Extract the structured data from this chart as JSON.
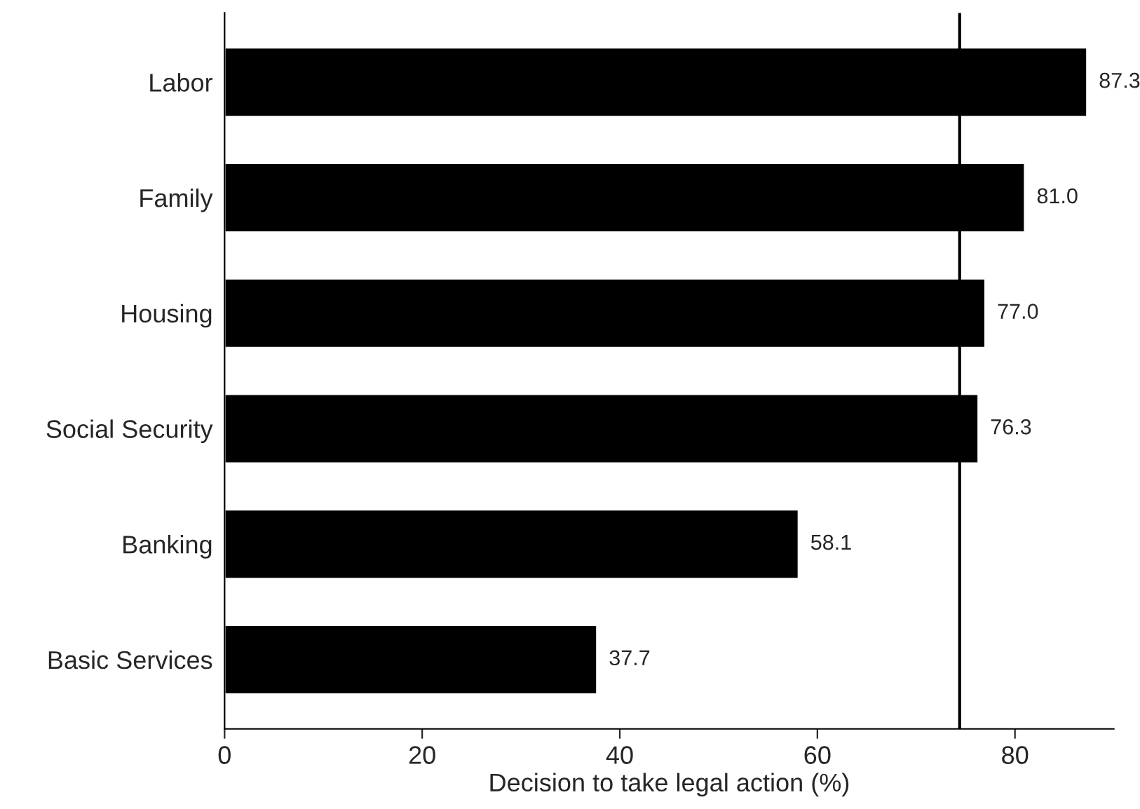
{
  "chart_data": {
    "type": "bar",
    "orientation": "horizontal",
    "categories": [
      "Labor",
      "Family",
      "Housing",
      "Social Security",
      "Banking",
      "Basic Services"
    ],
    "values": [
      87.3,
      81.0,
      77.0,
      76.3,
      58.1,
      37.7
    ],
    "value_labels": [
      "87.3",
      "81.0",
      "77.0",
      "76.3",
      "58.1",
      "37.7"
    ],
    "color": "#000000",
    "xlabel": "Decision to take legal action (%)",
    "xlim": [
      0,
      90
    ],
    "xticks": [
      0,
      20,
      40,
      60,
      80
    ],
    "ref_lines": [
      {
        "axis": "x",
        "value": 74.4,
        "color": "#000000"
      }
    ],
    "grid": false,
    "legend": false
  }
}
